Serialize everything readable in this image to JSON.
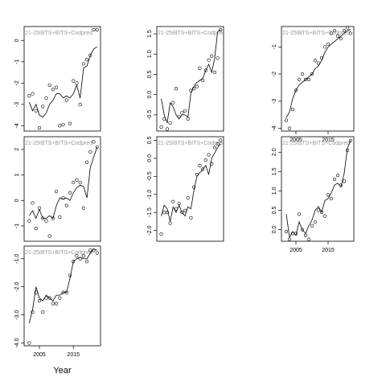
{
  "chart_data": [
    {
      "type": "scatter",
      "title": "21-25IBTS+BITS+Codpred",
      "x": [
        2002,
        2003,
        2004,
        2005,
        2006,
        2007,
        2008,
        2009,
        2010,
        2011,
        2012,
        2013,
        2014,
        2015,
        2016,
        2017,
        2018,
        2019,
        2020,
        2021,
        2022
      ],
      "xlim": [
        2000.5,
        2023
      ],
      "ylim": [
        -4.25,
        0.65
      ],
      "yticks": [
        -4,
        -3,
        -2,
        -1,
        0
      ],
      "series": [
        {
          "kind": "points",
          "values": [
            -2.6,
            -2.5,
            -3.3,
            -4.1,
            -3.1,
            -2.7,
            -2.1,
            -2.3,
            -2.2,
            -4.0,
            -3.95,
            -2.8,
            -3.9,
            -1.9,
            -2.0,
            -3.0,
            -1.1,
            -0.9,
            -0.7,
            0.5,
            0.5
          ]
        },
        {
          "kind": "line",
          "values": [
            -2.9,
            -3.3,
            -3.0,
            -3.5,
            -3.6,
            -3.4,
            -3.0,
            -2.8,
            -2.5,
            -2.5,
            -2.7,
            -2.6,
            -2.7,
            -2.5,
            -2.1,
            -2.7,
            -1.3,
            -1.2,
            -0.7,
            -0.4,
            -0.3
          ]
        }
      ]
    },
    {
      "type": "scatter",
      "title": "21-25IBTS+BITS+Codpred",
      "x": [
        2002,
        2003,
        2004,
        2005,
        2006,
        2007,
        2008,
        2009,
        2010,
        2011,
        2012,
        2013,
        2014,
        2015,
        2016,
        2017,
        2018,
        2019,
        2020,
        2021,
        2022
      ],
      "xlim": [
        2000.5,
        2023
      ],
      "ylim": [
        -0.9,
        1.68
      ],
      "yticks": [
        {
          "value": -0.5,
          "label": "-0.5"
        },
        {
          "value": 0,
          "label": "0.0"
        },
        0.5,
        {
          "value": 1,
          "label": "1.0"
        },
        1.5
      ],
      "series": [
        {
          "kind": "points",
          "values": [
            -0.8,
            -0.6,
            -0.85,
            -0.7,
            -0.2,
            0.15,
            -0.55,
            -0.45,
            -0.4,
            -0.6,
            0.1,
            0.15,
            0.2,
            0.65,
            0.35,
            0.6,
            0.85,
            0.95,
            0.55,
            0.9,
            1.6
          ]
        },
        {
          "kind": "line",
          "values": [
            -0.1,
            -0.5,
            -0.7,
            -0.2,
            -0.3,
            -0.5,
            -0.6,
            -0.5,
            -0.5,
            -0.55,
            0.05,
            0.2,
            0.3,
            0.35,
            0.4,
            0.6,
            0.75,
            0.55,
            0.9,
            1.55,
            1.6
          ]
        }
      ]
    },
    {
      "type": "scatter",
      "title": "21-25IBTS+BITS+Codpred",
      "x": [
        2002,
        2003,
        2004,
        2005,
        2006,
        2007,
        2008,
        2009,
        2010,
        2011,
        2012,
        2013,
        2014,
        2015,
        2016,
        2017,
        2018,
        2019,
        2020,
        2021,
        2022
      ],
      "xlim": [
        2000.5,
        2023
      ],
      "ylim": [
        -4.1,
        -0.25
      ],
      "yticks": [
        -4,
        -3,
        -2,
        -1
      ],
      "xticks": [
        2005,
        2015
      ],
      "series": [
        {
          "kind": "points",
          "values": [
            -3.7,
            -4.0,
            -3.3,
            -2.6,
            -2.2,
            -2.0,
            -2.2,
            -2.2,
            -2.0,
            -1.5,
            -1.6,
            -1.4,
            -1.0,
            -0.9,
            -0.5,
            -0.4,
            -0.6,
            -0.7,
            -0.4,
            -0.3,
            -0.5
          ]
        },
        {
          "kind": "line",
          "values": [
            -3.6,
            -3.4,
            -2.9,
            -2.6,
            -2.4,
            -2.3,
            -2.2,
            -2.1,
            -2.0,
            -1.8,
            -1.7,
            -1.5,
            -1.2,
            -1.0,
            -0.9,
            -0.8,
            -0.7,
            -0.6,
            -0.5,
            -0.4,
            -0.35
          ]
        }
      ]
    },
    {
      "type": "scatter",
      "title": "21-25IBTS+BITS+Codpred",
      "x": [
        2002,
        2003,
        2004,
        2005,
        2006,
        2007,
        2008,
        2009,
        2010,
        2011,
        2012,
        2013,
        2014,
        2015,
        2016,
        2017,
        2018,
        2019,
        2020,
        2021,
        2022
      ],
      "xlim": [
        2000.5,
        2023
      ],
      "ylim": [
        -1.6,
        2.5
      ],
      "yticks": [
        -1,
        0,
        1,
        2
      ],
      "series": [
        {
          "kind": "points",
          "values": [
            -0.8,
            -0.1,
            -1.1,
            -0.3,
            -0.7,
            -0.8,
            -1.4,
            -0.7,
            0.35,
            -0.65,
            0.1,
            -0.2,
            0.3,
            0.7,
            0.8,
            0.7,
            -0.3,
            1.5,
            1.9,
            2.3,
            2.1
          ]
        },
        {
          "kind": "line",
          "values": [
            -0.6,
            -0.4,
            -0.7,
            -0.35,
            -0.7,
            -0.7,
            -0.6,
            -0.7,
            -0.2,
            0.1,
            0.05,
            0.1,
            0.0,
            0.3,
            0.5,
            0.6,
            0.55,
            0.1,
            1.3,
            1.7,
            2.1
          ]
        }
      ]
    },
    {
      "type": "scatter",
      "title": "21-25IBTS+BITS+Codpred",
      "x": [
        2002,
        2003,
        2004,
        2005,
        2006,
        2007,
        2008,
        2009,
        2010,
        2011,
        2012,
        2013,
        2014,
        2015,
        2016,
        2017,
        2018,
        2019,
        2020,
        2021,
        2022
      ],
      "xlim": [
        2000.5,
        2023
      ],
      "ylim": [
        -2.3,
        0.6
      ],
      "yticks": [
        {
          "value": -2,
          "label": "-2.0"
        },
        -1.5,
        {
          "value": -1,
          "label": "-1.0"
        },
        -0.5,
        {
          "value": 0,
          "label": "0.0"
        },
        0.5
      ],
      "series": [
        {
          "kind": "points",
          "values": [
            -2.1,
            -1.5,
            -1.5,
            -1.8,
            -1.2,
            -1.4,
            -1.25,
            -1.5,
            -1.45,
            -1.1,
            -1.65,
            -0.8,
            -0.45,
            -0.2,
            -0.3,
            -0.05,
            0.1,
            -0.15,
            0.3,
            0.4,
            0.5
          ]
        },
        {
          "kind": "line",
          "values": [
            -1.6,
            -1.3,
            -1.4,
            -1.75,
            -1.35,
            -1.5,
            -1.3,
            -1.5,
            -1.6,
            -1.35,
            -1.4,
            -0.9,
            -0.5,
            -0.4,
            -0.3,
            -0.2,
            -0.45,
            0.0,
            0.15,
            0.3,
            0.4
          ]
        }
      ]
    },
    {
      "type": "scatter",
      "title": "21-25IBTS+BITS+Codpred",
      "x": [
        2002,
        2003,
        2004,
        2005,
        2006,
        2007,
        2008,
        2009,
        2010,
        2011,
        2012,
        2013,
        2014,
        2015,
        2016,
        2017,
        2018,
        2019,
        2020,
        2021,
        2022
      ],
      "xlim": [
        2000.5,
        2023
      ],
      "ylim": [
        -0.3,
        2.4
      ],
      "xticks": [
        2005,
        2015
      ],
      "yticks": [
        {
          "value": 0,
          "label": "0.0"
        },
        0.5,
        {
          "value": 1,
          "label": "1.0"
        },
        1.5,
        {
          "value": 2,
          "label": "2.0"
        }
      ],
      "series": [
        {
          "kind": "points",
          "values": [
            -0.05,
            -0.25,
            -0.1,
            -0.1,
            0.4,
            0.0,
            -0.15,
            -0.25,
            0.1,
            0.2,
            0.5,
            0.45,
            0.35,
            0.9,
            0.8,
            1.3,
            1.4,
            1.15,
            1.25,
            2.05,
            2.3
          ]
        },
        {
          "kind": "line",
          "values": [
            0.4,
            -0.2,
            -0.05,
            -0.15,
            0.2,
            0.0,
            -0.1,
            0.1,
            0.25,
            0.5,
            0.6,
            0.45,
            0.75,
            0.8,
            0.95,
            1.15,
            1.2,
            1.1,
            1.45,
            2.1,
            2.3
          ]
        }
      ]
    },
    {
      "type": "scatter",
      "title": "21-25IBTS+BITS+Codpred",
      "xlabel": "Year",
      "x": [
        2002,
        2003,
        2004,
        2005,
        2006,
        2007,
        2008,
        2009,
        2010,
        2011,
        2012,
        2013,
        2014,
        2015,
        2016,
        2017,
        2018,
        2019,
        2020,
        2021,
        2022
      ],
      "xlim": [
        2000.5,
        2023
      ],
      "ylim": [
        -4.1,
        -0.55
      ],
      "xticks": [
        2005,
        2015
      ],
      "yticks": [
        {
          "value": -4,
          "label": "-4.0"
        },
        {
          "value": -3,
          "label": "-3.0"
        },
        {
          "value": -2,
          "label": "-2.0"
        },
        {
          "value": -1,
          "label": "-1.0"
        }
      ],
      "series": [
        {
          "kind": "points",
          "values": [
            -4.0,
            -2.9,
            -2.2,
            -2.5,
            -2.9,
            -2.4,
            -2.4,
            -2.6,
            -2.6,
            -2.4,
            -2.2,
            -2.2,
            -1.6,
            -1.1,
            -0.9,
            -1.0,
            -0.9,
            -1.1,
            -0.7,
            -0.7,
            -0.8
          ]
        },
        {
          "kind": "line",
          "values": [
            -3.3,
            -2.8,
            -2.0,
            -2.4,
            -2.5,
            -2.3,
            -2.4,
            -2.5,
            -2.3,
            -2.3,
            -2.2,
            -2.2,
            -1.7,
            -1.1,
            -1.0,
            -0.95,
            -1.0,
            -1.0,
            -0.8,
            -0.65,
            -0.7
          ]
        }
      ]
    }
  ]
}
